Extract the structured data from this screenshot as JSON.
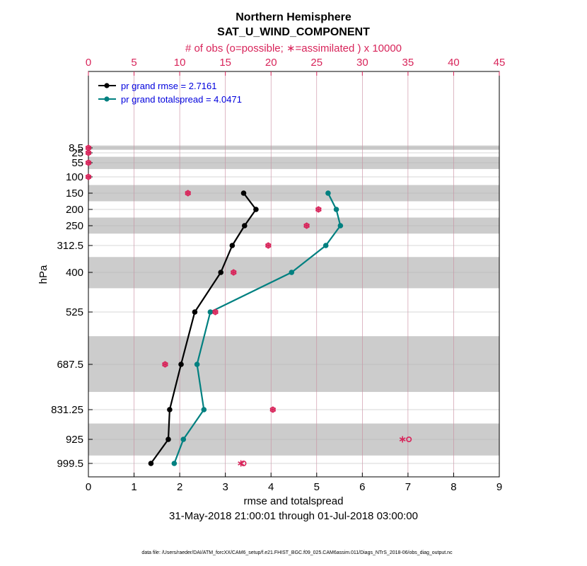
{
  "chart_data": {
    "type": "line",
    "title": "Northern Hemisphere",
    "subtitle": "SAT_U_WIND_COMPONENT",
    "top_axis_label": "# of obs (o=possible; ∗=assimilated ) x 10000",
    "xlabel": "rmse and totalspread",
    "ylabel": "hPa",
    "date_range": "31-May-2018 21:00:01 through 01-Jul-2018 03:00:00",
    "footnote": "data file: /Users/raeder/DAI/ATM_forcXX/CAM6_setup/f.e21.FHIST_BGC.f09_025.CAM6assim.011/Diags_NTrS_2018-06/obs_diag_output.nc",
    "xlim": [
      0,
      9
    ],
    "xticks": [
      0,
      1,
      2,
      3,
      4,
      5,
      6,
      7,
      8,
      9
    ],
    "top_xlim": [
      0,
      45
    ],
    "top_xticks": [
      0,
      5,
      10,
      15,
      20,
      25,
      30,
      35,
      40,
      45
    ],
    "levels": [
      8.5,
      25,
      55,
      100,
      150,
      200,
      250,
      312.5,
      400,
      525,
      687.5,
      831.25,
      925,
      999.5
    ],
    "level_labels": [
      "8.5",
      "25",
      "55",
      "100",
      "150",
      "200",
      "250",
      "312.5",
      "400",
      "525",
      "687.5",
      "831.25",
      "925",
      "999.5"
    ],
    "shaded_bands_hPa": [
      [
        5,
        15
      ],
      [
        37,
        75
      ],
      [
        125,
        175
      ],
      [
        225,
        275
      ],
      [
        350,
        450
      ],
      [
        600,
        775
      ],
      [
        875,
        975
      ]
    ],
    "series": [
      {
        "name": "pr grand rmse = 2.7161",
        "color": "#000000",
        "levels": [
          150,
          200,
          250,
          312.5,
          400,
          525,
          687.5,
          831.25,
          925,
          999.5
        ],
        "values": [
          3.4,
          3.67,
          3.42,
          3.15,
          2.9,
          2.33,
          2.03,
          1.78,
          1.75,
          1.37
        ]
      },
      {
        "name": "pr grand totalspread = 4.0471",
        "color": "#008080",
        "levels": [
          150,
          200,
          250,
          312.5,
          400,
          525,
          687.5,
          831.25,
          925,
          999.5
        ],
        "values": [
          5.25,
          5.43,
          5.52,
          5.2,
          4.45,
          2.67,
          2.38,
          2.53,
          2.08,
          1.88
        ]
      }
    ],
    "obs_counts": {
      "color": "#d8245a",
      "levels": [
        8.5,
        25,
        55,
        100,
        150,
        200,
        250,
        312.5,
        400,
        525,
        687.5,
        831.25,
        925,
        999.5
      ],
      "possible": [
        0,
        0,
        0,
        0,
        10.9,
        25.2,
        23.9,
        19.7,
        15.9,
        13.9,
        8.4,
        20.2,
        35.1,
        17
      ],
      "assimilated": [
        0,
        0,
        0,
        0,
        10.9,
        25.2,
        23.9,
        19.7,
        15.9,
        13.9,
        8.4,
        20.2,
        34.4,
        16.7
      ]
    }
  }
}
